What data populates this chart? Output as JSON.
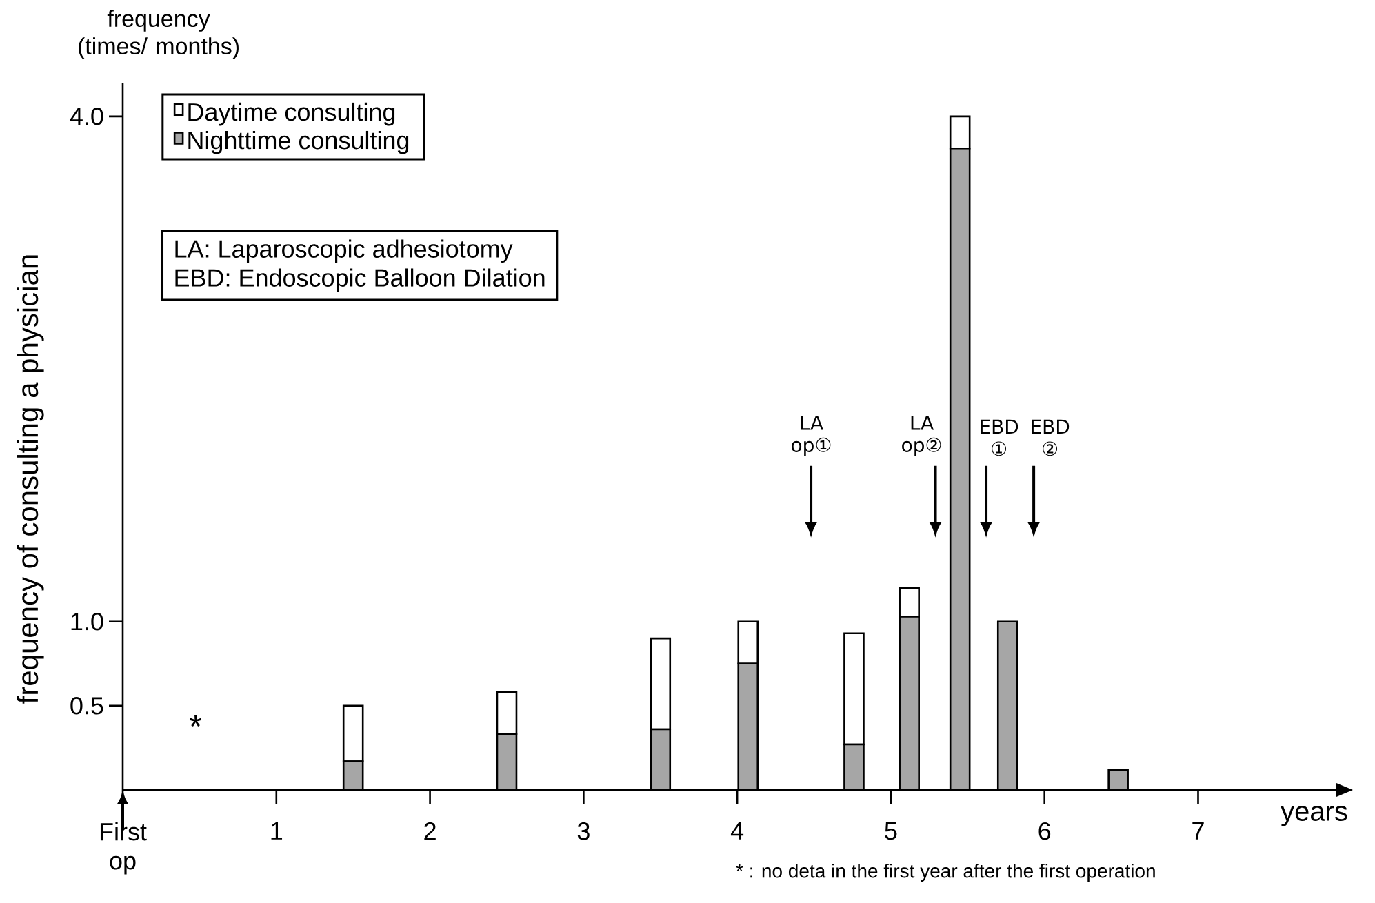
{
  "chart_data": {
    "type": "bar",
    "stacked": true,
    "legend": "top left",
    "title": "frequency (times/ months)",
    "ylabel": "frequency of consulting a physician",
    "xlabel": "years",
    "x": [
      1.5,
      2.5,
      3.5,
      4.07,
      4.76,
      5.12,
      5.45,
      5.76,
      6.48
    ],
    "series": [
      {
        "name": "Nighttime consulting",
        "color": "#a6a6a6",
        "values": [
          0.17,
          0.33,
          0.36,
          0.75,
          0.27,
          1.03,
          3.81,
          1.0,
          0.12
        ]
      },
      {
        "name": "Daytime consulting",
        "color": "#ffffff",
        "values": [
          0.33,
          0.25,
          0.54,
          0.25,
          0.66,
          0.17,
          0.19,
          null,
          null
        ]
      }
    ],
    "xlim": [
      0,
      7.9
    ],
    "ylim": [
      0,
      4.2
    ],
    "xticks": [
      {
        "value": 0,
        "label": "First op"
      },
      1,
      2,
      3,
      4,
      5,
      6,
      7
    ],
    "yticks": [
      0.5,
      {
        "value": 1,
        "label": "1.0"
      },
      {
        "value": 4,
        "label": "4.0"
      }
    ],
    "ref_lines": [
      {
        "axis": "x",
        "value": 4.48,
        "label": "LA op①"
      },
      {
        "axis": "x",
        "value": 5.29,
        "label": "LA op②"
      },
      {
        "axis": "x",
        "value": 5.62,
        "label": "EBD ①"
      },
      {
        "axis": "x",
        "value": 5.93,
        "label": "EBD ②"
      }
    ],
    "annotations": [
      "*",
      "LA: Laparoscopic adhesiotomy",
      "EBD: Endoscopic Balloon Dilation",
      "* : no deta in the first year after the first operation"
    ]
  }
}
